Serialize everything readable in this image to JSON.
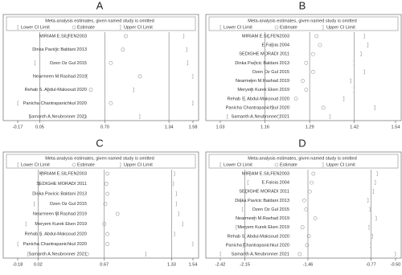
{
  "chart_data": [
    {
      "type": "sensitivity",
      "title": "A",
      "legend_title": "Meta-analysis estimates, given named study is omitted",
      "categories": [
        "MIRIAM E.SILFEN2003",
        "Dinka Pavicic Baldani 2013",
        "Ozen Oz Gul 2015",
        "Nearmeen M.Rashad 2019",
        "Rehab S. Abdul-Maksoud 2020",
        "Panicha Chantrapanichkul 2020",
        "Samanth A.Neubronner 2021"
      ],
      "series": [
        {
          "name": "Lower CI Limit",
          "color": "#999999",
          "values": [
            0.33,
            0.21,
            0.0,
            0.52,
            0.13,
            -0.17,
            -0.05
          ]
        },
        {
          "name": "Estimate",
          "color": "#999999",
          "values": [
            0.91,
            0.88,
            0.76,
            1.05,
            0.56,
            0.76,
            0.5
          ]
        },
        {
          "name": "Upper CI Limit",
          "color": "#999999",
          "values": [
            1.49,
            1.52,
            1.53,
            1.58,
            0.99,
            1.58,
            1.05
          ]
        }
      ],
      "xlim": [
        -0.17,
        1.58
      ],
      "xticks": [
        -0.17,
        0.05,
        {
          "value": 0.7,
          "label": "0.70"
        },
        1.34,
        1.58
      ],
      "ref_lines": [
        0.05,
        0.7,
        1.34
      ]
    },
    {
      "type": "sensitivity",
      "title": "B",
      "legend_title": "Meta-analysis estimates, given named study is omitted",
      "categories": [
        "MIRIAM E.SILFEN2003",
        "E.Faloia 2004",
        "SEDIGHE MORADI 2011",
        "Dinka Pavicic Baldani 2013",
        "Ozen Oz Gul 2015",
        "Nearmeen M.Rashad 2019",
        "Meryem Kurek Eken 2019",
        "Rehab S. Abdul-Maksoud 2020",
        "Panicha Chantrapanichkul 2020",
        "Samanth A.Neubronner 2021"
      ],
      "series": [
        {
          "name": "Lower CI Limit",
          "color": "#999999",
          "values": [
            1.17,
            1.18,
            1.16,
            1.13,
            1.16,
            1.12,
            1.12,
            1.1,
            1.18,
            1.05
          ]
        },
        {
          "name": "Estimate",
          "color": "#999999",
          "values": [
            1.31,
            1.32,
            1.3,
            1.28,
            1.3,
            1.27,
            1.28,
            1.25,
            1.33,
            1.2
          ]
        },
        {
          "name": "Upper CI Limit",
          "color": "#999999",
          "values": [
            1.45,
            1.46,
            1.44,
            1.42,
            1.45,
            1.41,
            1.42,
            1.39,
            1.48,
            1.35
          ]
        }
      ],
      "xlim": [
        1.03,
        1.54
      ],
      "xticks": [
        1.03,
        1.16,
        1.29,
        1.42,
        1.54
      ],
      "ref_lines": [
        1.16,
        1.29,
        1.42
      ]
    },
    {
      "type": "sensitivity",
      "title": "C",
      "legend_title": "Meta-analysis estimates, given named study is omitted",
      "categories": [
        "MIRIAM E.SILFEN2003",
        "SEDIGHE MORADI 2011",
        "Dinka Pavicic Baldani 2013",
        "Ozen Oz Gul 2015",
        "Nearmeen M.Rashad 2019",
        "Meryem Kurek Eken 2019",
        "Rehab S. Abdul-Maksoud 2020",
        "Panicha Chantrapanichkul 2020",
        "Samanth A.Neubronner 2021"
      ],
      "series": [
        {
          "name": "Lower CI Limit",
          "color": "#999999",
          "values": [
            0.05,
            0.03,
            0.02,
            -0.02,
            0.2,
            -0.1,
            0.04,
            -0.18,
            -0.08
          ]
        },
        {
          "name": "Estimate",
          "color": "#999999",
          "values": [
            0.7,
            0.69,
            0.7,
            0.68,
            0.8,
            0.67,
            0.7,
            0.7,
            0.5
          ]
        },
        {
          "name": "Upper CI Limit",
          "color": "#999999",
          "values": [
            1.36,
            1.35,
            1.38,
            1.38,
            1.4,
            1.44,
            1.36,
            1.54,
            1.08
          ]
        }
      ],
      "xlim": [
        -0.18,
        1.54
      ],
      "xticks": [
        -0.18,
        0.02,
        0.67,
        1.33,
        1.54
      ],
      "ref_lines": [
        0.02,
        0.67,
        1.33
      ]
    },
    {
      "type": "sensitivity",
      "title": "D",
      "legend_title": "Meta-analysis estimates, given named study is omitted",
      "categories": [
        "MIRIAM E.SILFEN2003",
        "E.Faloia 2004",
        "SEDIGHE MORADI 2011",
        "Dinka Pavicic Baldani 2013",
        "Ozen Oz Gul 2015",
        "Nearmeen M.Rashad 2019",
        "Meryem Kurek Eken 2019",
        "Rehab S. Abdul-Maksoud 2020",
        "Panicha Chantrapanichkul 2020",
        "Samanth A.Neubronner 2021"
      ],
      "series": [
        {
          "name": "Lower CI Limit",
          "color": "#999999",
          "values": [
            -2.1,
            -2.12,
            -2.14,
            -2.2,
            -2.18,
            -2.05,
            -2.25,
            -2.15,
            -2.17,
            -2.42
          ]
        },
        {
          "name": "Estimate",
          "color": "#999999",
          "values": [
            -1.4,
            -1.42,
            -1.44,
            -1.5,
            -1.48,
            -1.38,
            -1.52,
            -1.45,
            -1.47,
            -1.55
          ]
        },
        {
          "name": "Upper CI Limit",
          "color": "#999999",
          "values": [
            -0.7,
            -0.72,
            -0.74,
            -0.8,
            -0.78,
            -0.71,
            -0.79,
            -0.75,
            -0.77,
            -0.5
          ]
        }
      ],
      "xlim": [
        -2.42,
        -0.5
      ],
      "xticks": [
        -2.42,
        -2.15,
        -1.46,
        -0.77,
        {
          "value": -0.5,
          "label": "-0.50"
        }
      ],
      "ref_lines": [
        -2.15,
        -1.46,
        -0.77
      ]
    }
  ]
}
